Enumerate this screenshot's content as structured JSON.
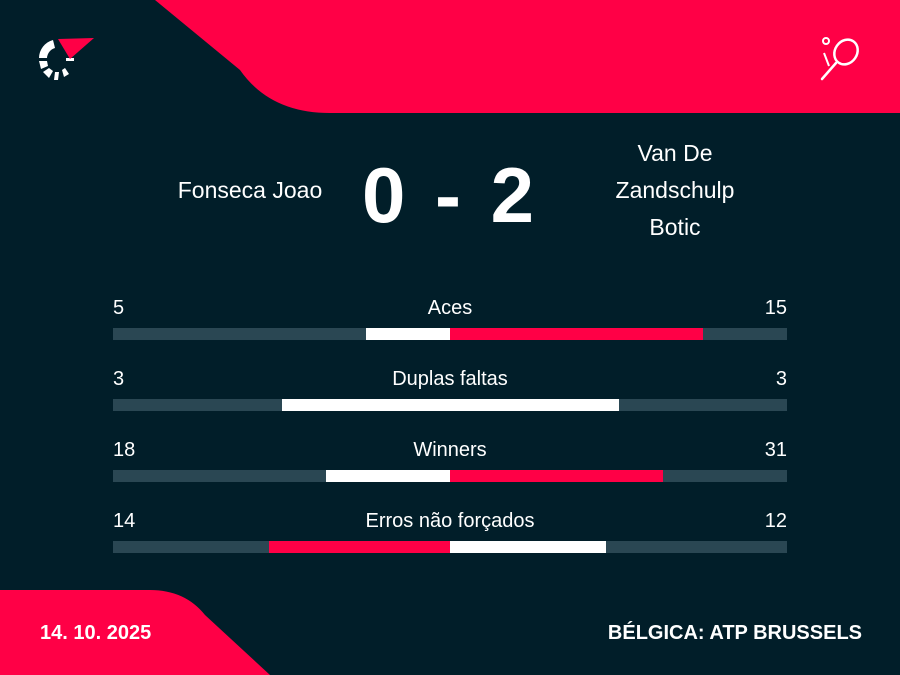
{
  "colors": {
    "background": "#011e29",
    "accent": "#ff0046",
    "track": "#2a4753",
    "neutral": "#ffffff"
  },
  "header": {
    "logo_icon": "flashscore-logo-icon",
    "sport_icon": "tennis-racket-icon"
  },
  "match": {
    "player_home": "Fonseca Joao",
    "player_away": "Van De Zandschulp Botic",
    "score": "0 - 2"
  },
  "stats": [
    {
      "label": "Aces",
      "home": 5,
      "away": 15
    },
    {
      "label": "Duplas faltas",
      "home": 3,
      "away": 3
    },
    {
      "label": "Winners",
      "home": 18,
      "away": 31
    },
    {
      "label": "Erros não forçados",
      "home": 14,
      "away": 12
    }
  ],
  "footer": {
    "date": "14. 10. 2025",
    "tournament": "BÉLGICA: ATP BRUSSELS"
  }
}
